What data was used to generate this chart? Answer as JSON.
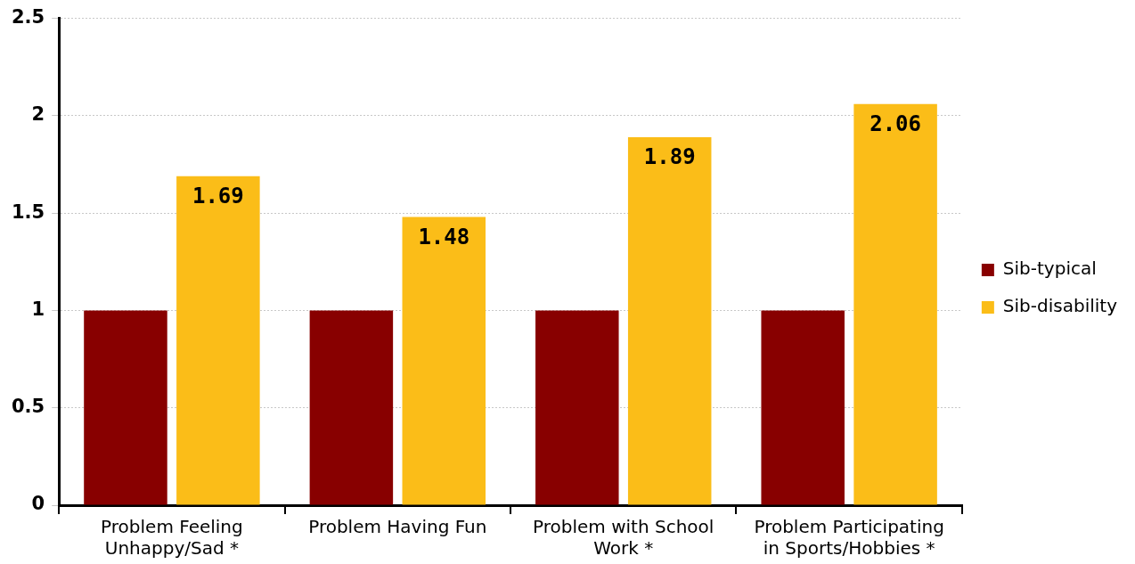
{
  "chart_data": {
    "type": "bar",
    "categories": [
      "Problem Feeling Unhappy/Sad *",
      "Problem Having Fun",
      "Problem with School Work *",
      "Problem Participating in Sports/Hobbies *"
    ],
    "series": [
      {
        "name": "Sib-typical",
        "color": "#880000",
        "values": [
          1,
          1,
          1,
          1
        ]
      },
      {
        "name": "Sib-disability",
        "color": "#fbbd18",
        "values": [
          1.69,
          1.48,
          1.89,
          2.06
        ],
        "value_labels": [
          "1.69",
          "1.48",
          "1.89",
          "2.06"
        ]
      }
    ],
    "ylim": [
      0,
      2.5
    ],
    "yticks": [
      0,
      0.5,
      1,
      1.5,
      2,
      2.5
    ],
    "grid": "y",
    "legend": "right"
  }
}
